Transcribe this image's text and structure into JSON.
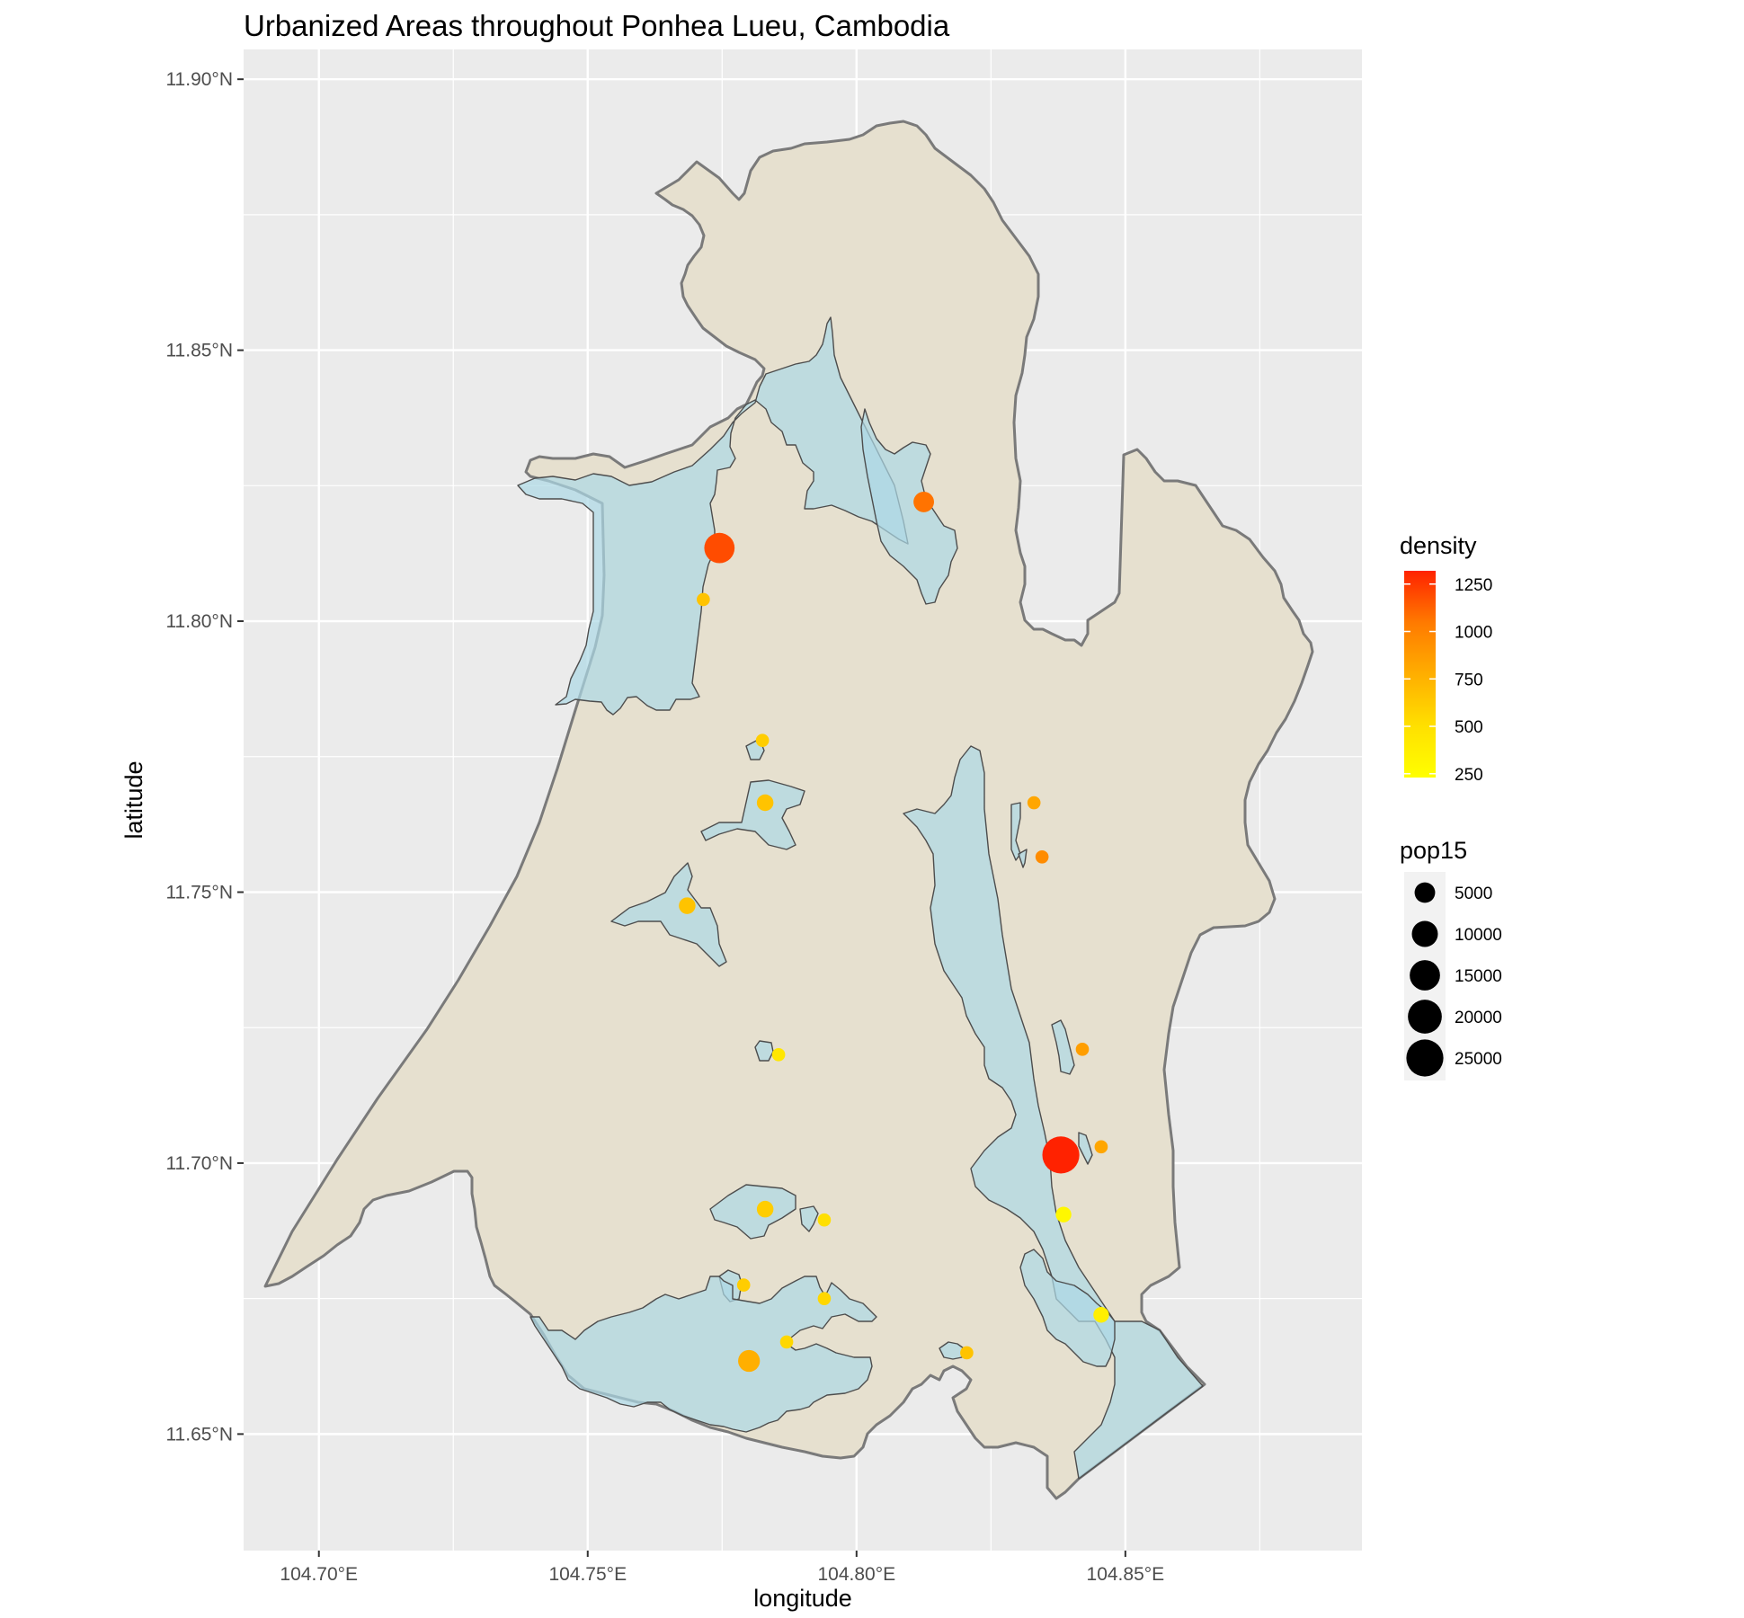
{
  "title": "Urbanized Areas throughout Ponhea Lueu, Cambodia",
  "x_axis": {
    "label": "longitude",
    "ticks": [
      "104.70°E",
      "104.75°E",
      "104.80°E",
      "104.85°E"
    ]
  },
  "y_axis": {
    "label": "latitude",
    "ticks": [
      "11.65°N",
      "11.70°N",
      "11.75°N",
      "11.80°N",
      "11.85°N",
      "11.90°N"
    ]
  },
  "legend_density": {
    "title": "density",
    "labels": [
      "1250",
      "1000",
      "750",
      "500",
      "250"
    ],
    "gradient": [
      "#FF2200",
      "#FF7A00",
      "#FFAE00",
      "#FFE000",
      "#FFFF00"
    ]
  },
  "legend_pop": {
    "title": "pop15",
    "labels": [
      "5000",
      "10000",
      "15000",
      "20000",
      "25000"
    ]
  },
  "colors": {
    "panel": "#EBEBEB",
    "grid": "#FFFFFF",
    "district_fill": "#E6E0CF",
    "district_border": "#7A7A7A",
    "urban_fill": "#ADD8E6",
    "urban_border": "#4D4D4D"
  },
  "chart_data": {
    "type": "map",
    "x_range": [
      104.686,
      104.894
    ],
    "y_range": [
      11.6285,
      11.9055
    ],
    "points": [
      {
        "lon": 104.7745,
        "lat": 11.8135,
        "pop15": 15000,
        "density": 1150
      },
      {
        "lon": 104.8125,
        "lat": 11.822,
        "pop15": 5000,
        "density": 1000
      },
      {
        "lon": 104.7715,
        "lat": 11.804,
        "pop15": 1000,
        "density": 600
      },
      {
        "lon": 104.7825,
        "lat": 11.778,
        "pop15": 1000,
        "density": 550
      },
      {
        "lon": 104.783,
        "lat": 11.7665,
        "pop15": 2500,
        "density": 600
      },
      {
        "lon": 104.7685,
        "lat": 11.7475,
        "pop15": 2500,
        "density": 600
      },
      {
        "lon": 104.7855,
        "lat": 11.72,
        "pop15": 1000,
        "density": 400
      },
      {
        "lon": 104.833,
        "lat": 11.7665,
        "pop15": 1000,
        "density": 750
      },
      {
        "lon": 104.8345,
        "lat": 11.7565,
        "pop15": 1000,
        "density": 900
      },
      {
        "lon": 104.842,
        "lat": 11.721,
        "pop15": 1000,
        "density": 800
      },
      {
        "lon": 104.838,
        "lat": 11.7015,
        "pop15": 25000,
        "density": 1300
      },
      {
        "lon": 104.8455,
        "lat": 11.703,
        "pop15": 1000,
        "density": 750
      },
      {
        "lon": 104.8385,
        "lat": 11.6905,
        "pop15": 2000,
        "density": 300
      },
      {
        "lon": 104.783,
        "lat": 11.6915,
        "pop15": 2500,
        "density": 550
      },
      {
        "lon": 104.794,
        "lat": 11.6895,
        "pop15": 1000,
        "density": 450
      },
      {
        "lon": 104.779,
        "lat": 11.6775,
        "pop15": 1000,
        "density": 550
      },
      {
        "lon": 104.794,
        "lat": 11.675,
        "pop15": 1000,
        "density": 500
      },
      {
        "lon": 104.787,
        "lat": 11.667,
        "pop15": 1000,
        "density": 500
      },
      {
        "lon": 104.78,
        "lat": 11.6635,
        "pop15": 6000,
        "density": 700
      },
      {
        "lon": 104.8205,
        "lat": 11.665,
        "pop15": 1000,
        "density": 600
      },
      {
        "lon": 104.8455,
        "lat": 11.672,
        "pop15": 2000,
        "density": 350
      }
    ]
  }
}
